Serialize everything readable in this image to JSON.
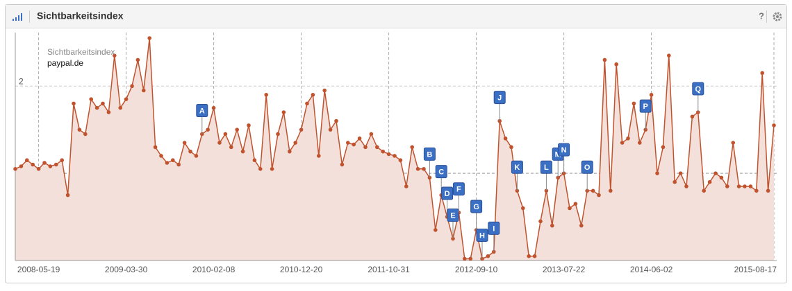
{
  "panel": {
    "title": "Sichtbarkeitsindex",
    "help": "?"
  },
  "chart_data": {
    "type": "area",
    "y_label": "Sichtbarkeitsindex",
    "categories": [
      null,
      null,
      null,
      null,
      "2008-05-19",
      null,
      null,
      null,
      null,
      null,
      null,
      null,
      null,
      null,
      null,
      null,
      null,
      null,
      null,
      "2009-03-30",
      null,
      null,
      null,
      null,
      null,
      null,
      null,
      null,
      null,
      null,
      null,
      null,
      null,
      null,
      "2010-02-08",
      null,
      null,
      null,
      null,
      null,
      null,
      null,
      null,
      null,
      null,
      null,
      null,
      null,
      null,
      "2010-12-20",
      null,
      null,
      null,
      null,
      null,
      null,
      null,
      null,
      null,
      null,
      null,
      null,
      null,
      null,
      "2011-10-31",
      null,
      null,
      null,
      null,
      null,
      null,
      null,
      null,
      null,
      null,
      null,
      null,
      null,
      null,
      "2012-09-10",
      null,
      null,
      null,
      null,
      null,
      null,
      null,
      null,
      null,
      null,
      null,
      null,
      null,
      null,
      "2013-07-22",
      null,
      null,
      null,
      null,
      null,
      null,
      null,
      null,
      null,
      null,
      null,
      null,
      null,
      null,
      "2014-06-02",
      null,
      null,
      null,
      null,
      null,
      null,
      null,
      null,
      null,
      null,
      null,
      null,
      null,
      null,
      null,
      null,
      null,
      null,
      null,
      null,
      "2015-08-17"
    ],
    "series": [
      {
        "name": "paypal.de",
        "color": "#c0532e",
        "fill": "#f3e0da",
        "values": [
          1.05,
          1.08,
          1.15,
          1.1,
          1.05,
          1.12,
          1.08,
          1.1,
          1.15,
          0.75,
          1.8,
          1.5,
          1.45,
          1.85,
          1.75,
          1.8,
          1.7,
          2.35,
          1.75,
          1.85,
          2.0,
          2.3,
          1.95,
          2.55,
          1.3,
          1.2,
          1.12,
          1.15,
          1.1,
          1.35,
          1.25,
          1.2,
          1.45,
          1.5,
          1.75,
          1.35,
          1.45,
          1.3,
          1.5,
          1.25,
          1.55,
          1.15,
          1.05,
          1.9,
          1.05,
          1.45,
          1.7,
          1.25,
          1.35,
          1.5,
          1.8,
          1.9,
          1.2,
          1.95,
          1.5,
          1.6,
          1.1,
          1.35,
          1.33,
          1.4,
          1.3,
          1.45,
          1.3,
          1.25,
          1.22,
          1.2,
          1.15,
          0.85,
          1.3,
          1.05,
          1.05,
          0.95,
          0.35,
          0.75,
          0.5,
          0.25,
          0.55,
          0.02,
          0.02,
          0.35,
          0.02,
          0.05,
          0.1,
          1.6,
          1.4,
          1.3,
          0.8,
          0.6,
          0.05,
          0.05,
          0.45,
          0.8,
          0.4,
          0.95,
          1.0,
          0.6,
          0.65,
          0.4,
          0.8,
          0.8,
          0.75,
          2.3,
          0.8,
          2.25,
          1.35,
          1.4,
          1.8,
          1.35,
          1.5,
          1.9,
          1.0,
          1.3,
          2.35,
          0.9,
          1.0,
          0.85,
          1.65,
          1.7,
          0.8,
          0.9,
          1.0,
          0.95,
          0.85,
          1.35,
          0.85,
          0.85,
          0.85,
          0.8,
          2.15,
          0.8,
          1.55
        ]
      }
    ],
    "ylim": [
      0,
      2.55
    ],
    "yticks": [
      0,
      1,
      2
    ],
    "grid": true,
    "annotations": [
      {
        "label": "A",
        "point": 32
      },
      {
        "label": "B",
        "point": 71
      },
      {
        "label": "C",
        "point": 73
      },
      {
        "label": "D",
        "point": 74
      },
      {
        "label": "E",
        "point": 75
      },
      {
        "label": "F",
        "point": 76
      },
      {
        "label": "G",
        "point": 79
      },
      {
        "label": "H",
        "point": 80
      },
      {
        "label": "I",
        "point": 82
      },
      {
        "label": "J",
        "point": 83
      },
      {
        "label": "K",
        "point": 86
      },
      {
        "label": "L",
        "point": 91
      },
      {
        "label": "M",
        "point": 93
      },
      {
        "label": "N",
        "point": 94
      },
      {
        "label": "O",
        "point": 98
      },
      {
        "label": "P",
        "point": 108
      },
      {
        "label": "Q",
        "point": 117
      }
    ]
  }
}
